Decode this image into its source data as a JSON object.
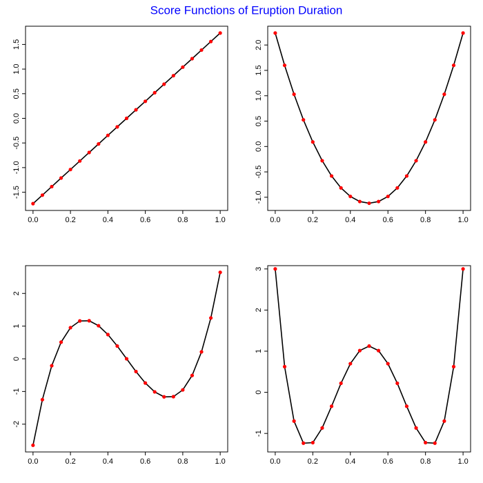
{
  "title": "Score Functions of Eruption Duration",
  "chart_data": [
    {
      "type": "line",
      "x": [
        0,
        0.05,
        0.1,
        0.15,
        0.2,
        0.25,
        0.3,
        0.35,
        0.4,
        0.45,
        0.5,
        0.55,
        0.6,
        0.65,
        0.7,
        0.75,
        0.8,
        0.85,
        0.9,
        0.95,
        1
      ],
      "series": [
        {
          "color": "#ff0000",
          "line_color": "#000000",
          "values": [
            -1.732,
            -1.559,
            -1.386,
            -1.212,
            -1.039,
            -0.866,
            -0.693,
            -0.52,
            -0.346,
            -0.173,
            0,
            0.173,
            0.346,
            0.52,
            0.693,
            0.866,
            1.039,
            1.212,
            1.386,
            1.559,
            1.732
          ]
        }
      ],
      "xlim": [
        -0.04,
        1.04
      ],
      "ylim": [
        -1.87,
        1.87
      ],
      "xticks": [
        {
          "value": 0,
          "label": "0.0"
        },
        0.2,
        0.4,
        0.6,
        0.8,
        {
          "value": 1,
          "label": "1.0"
        }
      ],
      "yticks": [
        -1.5,
        {
          "value": -1,
          "label": "-1.0"
        },
        -0.5,
        {
          "value": 0,
          "label": "0.0"
        },
        0.5,
        {
          "value": 1,
          "label": "1.0"
        },
        1.5
      ]
    },
    {
      "type": "line",
      "x": [
        0,
        0.05,
        0.1,
        0.15,
        0.2,
        0.25,
        0.3,
        0.35,
        0.4,
        0.45,
        0.5,
        0.55,
        0.6,
        0.65,
        0.7,
        0.75,
        0.8,
        0.85,
        0.9,
        0.95,
        1
      ],
      "series": [
        {
          "color": "#ff0000",
          "line_color": "#000000",
          "values": [
            2.236,
            1.599,
            1.029,
            0.525,
            0.089,
            -0.28,
            -0.581,
            -0.816,
            -0.984,
            -1.084,
            -1.118,
            -1.084,
            -0.984,
            -0.816,
            -0.581,
            -0.28,
            0.089,
            0.525,
            1.029,
            1.599,
            2.236
          ]
        }
      ],
      "xlim": [
        -0.04,
        1.04
      ],
      "ylim": [
        -1.26,
        2.37
      ],
      "xticks": [
        {
          "value": 0,
          "label": "0.0"
        },
        0.2,
        0.4,
        0.6,
        0.8,
        {
          "value": 1,
          "label": "1.0"
        }
      ],
      "yticks": [
        {
          "value": -1,
          "label": "-1.0"
        },
        -0.5,
        {
          "value": 0,
          "label": "0.0"
        },
        0.5,
        {
          "value": 1,
          "label": "1.0"
        },
        1.5,
        {
          "value": 2,
          "label": "2.0"
        }
      ]
    },
    {
      "type": "line",
      "x": [
        0,
        0.05,
        0.1,
        0.15,
        0.2,
        0.25,
        0.3,
        0.35,
        0.4,
        0.45,
        0.5,
        0.55,
        0.6,
        0.65,
        0.7,
        0.75,
        0.8,
        0.85,
        0.9,
        0.95,
        1
      ],
      "series": [
        {
          "color": "#ff0000",
          "line_color": "#000000",
          "values": [
            -2.646,
            -1.25,
            -0.212,
            0.509,
            0.952,
            1.158,
            1.164,
            1.012,
            0.741,
            0.39,
            0,
            -0.39,
            -0.741,
            -1.012,
            -1.164,
            -1.158,
            -0.952,
            -0.509,
            0.212,
            1.25,
            2.646
          ]
        }
      ],
      "xlim": [
        -0.04,
        1.04
      ],
      "ylim": [
        -2.85,
        2.85
      ],
      "xticks": [
        {
          "value": 0,
          "label": "0.0"
        },
        0.2,
        0.4,
        0.6,
        0.8,
        {
          "value": 1,
          "label": "1.0"
        }
      ],
      "yticks": [
        -2,
        -1,
        0,
        1,
        2
      ]
    },
    {
      "type": "line",
      "x": [
        0,
        0.05,
        0.1,
        0.15,
        0.2,
        0.25,
        0.3,
        0.35,
        0.4,
        0.45,
        0.5,
        0.55,
        0.6,
        0.65,
        0.7,
        0.75,
        0.8,
        0.85,
        0.9,
        0.95,
        1
      ],
      "series": [
        {
          "color": "#ff0000",
          "line_color": "#000000",
          "values": [
            3,
            0.624,
            -0.699,
            -1.236,
            -1.224,
            -0.867,
            -0.339,
            0.219,
            0.696,
            1.014,
            1.125,
            1.014,
            0.696,
            0.219,
            -0.339,
            -0.867,
            -1.224,
            -1.236,
            -0.699,
            0.624,
            3
          ]
        }
      ],
      "xlim": [
        -0.04,
        1.04
      ],
      "ylim": [
        -1.45,
        3.08
      ],
      "xticks": [
        {
          "value": 0,
          "label": "0.0"
        },
        0.2,
        0.4,
        0.6,
        0.8,
        {
          "value": 1,
          "label": "1.0"
        }
      ],
      "yticks": [
        -1,
        0,
        1,
        2,
        3
      ]
    }
  ]
}
